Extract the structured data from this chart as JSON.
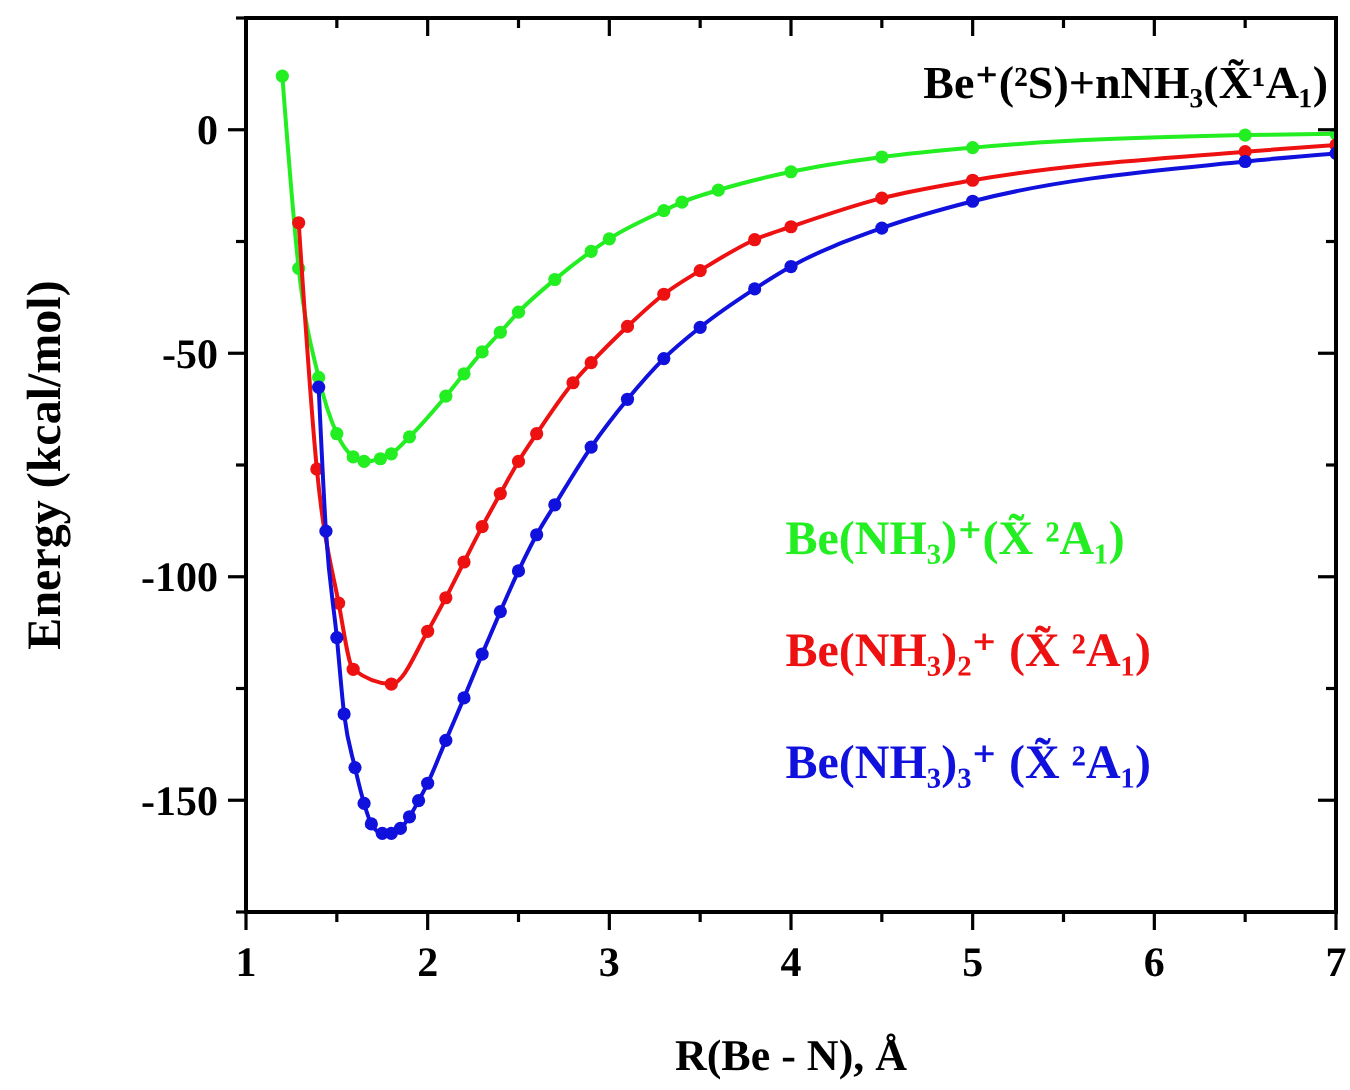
{
  "chart_data": {
    "type": "line",
    "xlabel": "R(Be - N), Å",
    "ylabel": "Energy (kcal/mol)",
    "annotations": [
      "Be⁺(²S)+nNH₃(X̃¹A₁)"
    ],
    "xlim": [
      1,
      7
    ],
    "ylim": [
      -175,
      25
    ],
    "xticks": [
      1,
      {
        "value": 1.5,
        "label": null
      },
      2,
      {
        "value": 2.5,
        "label": null
      },
      3,
      {
        "value": 3.5,
        "label": null
      },
      4,
      {
        "value": 4.5,
        "label": null
      },
      5,
      {
        "value": 5.5,
        "label": null
      },
      6,
      {
        "value": 6.5,
        "label": null
      },
      7
    ],
    "yticks": [
      {
        "value": -175,
        "label": null
      },
      -150,
      {
        "value": -125,
        "label": null
      },
      -100,
      {
        "value": -75,
        "label": null
      },
      -50,
      {
        "value": -25,
        "label": null
      },
      0,
      {
        "value": 25,
        "label": null
      }
    ],
    "grid": false,
    "legend": "right",
    "marker": "circle",
    "line_style": "solid",
    "series": [
      {
        "name": "Be(NH₃)⁺(X̃ ²A₁)",
        "color": "#22ee22",
        "x": [
          1.2,
          1.29,
          1.4,
          1.5,
          1.59,
          1.65,
          1.74,
          1.8,
          1.9,
          2.1,
          2.2,
          2.3,
          2.4,
          2.5,
          2.7,
          2.9,
          3.0,
          3.3,
          3.4,
          3.6,
          4.0,
          4.5,
          5.0,
          6.5,
          7.0
        ],
        "values": [
          12,
          -31,
          -55.4,
          -68,
          -73.2,
          -74.2,
          -73.6,
          -72.5,
          -68.7,
          -59.6,
          -54.6,
          -49.7,
          -45.3,
          -40.8,
          -33.5,
          -27.2,
          -24.4,
          -18.1,
          -16.2,
          -13.5,
          -9.4,
          -6.1,
          -4.0,
          -1.2,
          -0.9
        ]
      },
      {
        "name": "Be(NH₃)₂⁺ (X̃ ²A₁)",
        "color": "#ee1111",
        "x": [
          1.29,
          1.39,
          1.51,
          1.59,
          1.8,
          2.0,
          2.1,
          2.2,
          2.3,
          2.4,
          2.5,
          2.6,
          2.8,
          2.9,
          3.1,
          3.3,
          3.5,
          3.8,
          4.0,
          4.5,
          5.0,
          6.5,
          7.0
        ],
        "values": [
          -20.8,
          -75.9,
          -105.9,
          -120.7,
          -124,
          -112.2,
          -104.7,
          -96.7,
          -88.8,
          -81.4,
          -74.2,
          -68,
          -56.6,
          -52.1,
          -44,
          -36.8,
          -31.5,
          -24.6,
          -21.7,
          -15.3,
          -11.3,
          -4.9,
          -3.4
        ]
      },
      {
        "name": "Be(NH₃)₃⁺ (X̃ ²A₁)",
        "color": "#1111dd",
        "x": [
          1.4,
          1.44,
          1.5,
          1.54,
          1.6,
          1.65,
          1.69,
          1.75,
          1.8,
          1.85,
          1.9,
          1.95,
          2.0,
          2.1,
          2.2,
          2.3,
          2.4,
          2.5,
          2.6,
          2.7,
          2.9,
          3.1,
          3.3,
          3.5,
          3.8,
          4.0,
          4.5,
          5.0,
          6.5,
          7.0
        ],
        "values": [
          -57.6,
          -89.8,
          -113.6,
          -130.7,
          -142.7,
          -150.7,
          -155.3,
          -157.4,
          -157.4,
          -156.3,
          -153.7,
          -150.1,
          -146.2,
          -136.6,
          -127.1,
          -117.3,
          -107.8,
          -98.7,
          -90.6,
          -83.9,
          -71,
          -60.3,
          -51.2,
          -44.2,
          -35.6,
          -30.6,
          -22,
          -16,
          -7.1,
          -5.3
        ]
      }
    ]
  }
}
